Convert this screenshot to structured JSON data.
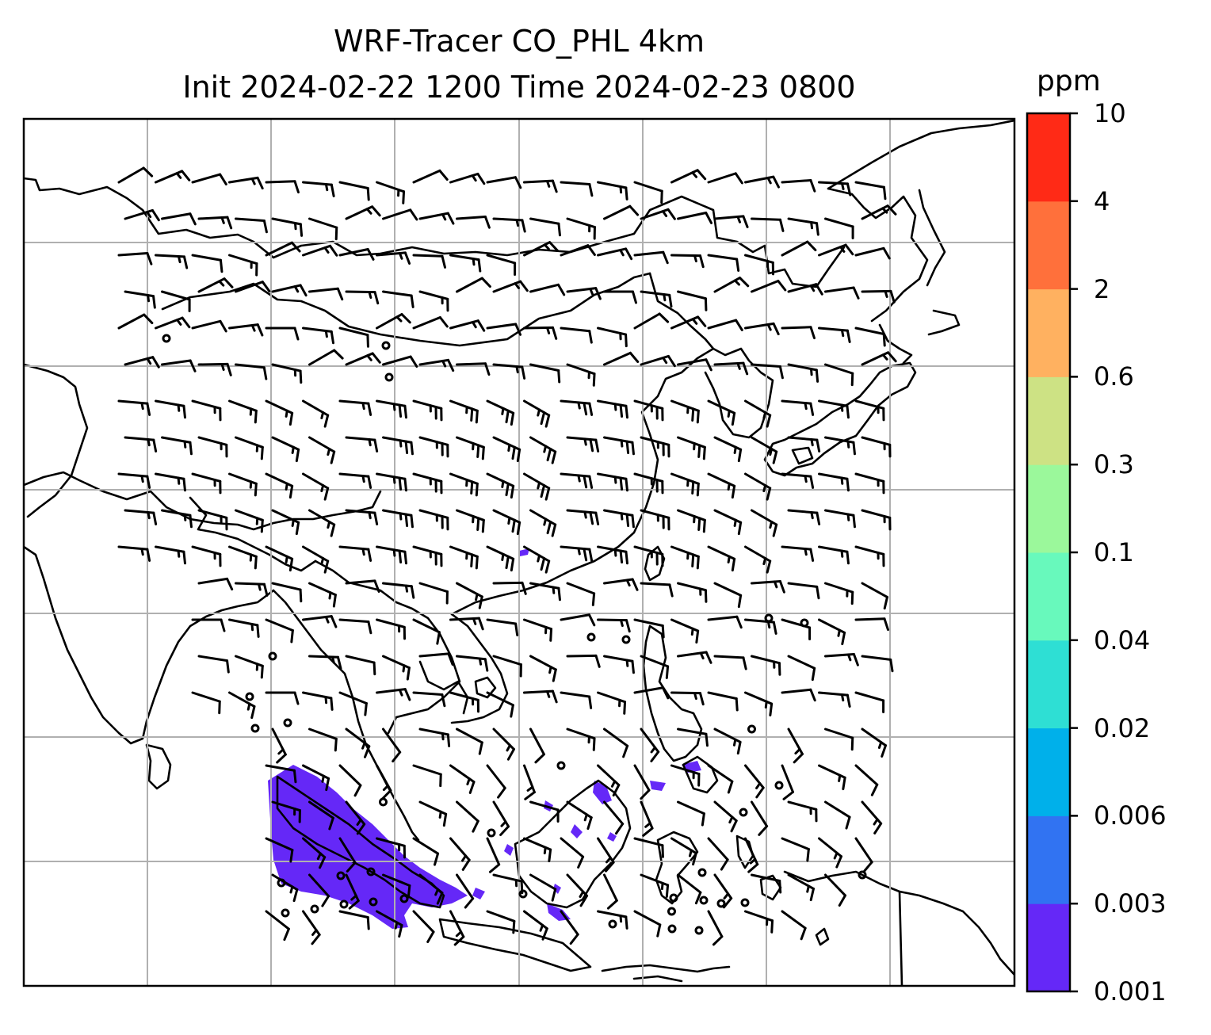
{
  "title": {
    "line1": "WRF-Tracer CO_PHL 4km",
    "line2": "Init 2024-02-22 1200 Time 2024-02-23 0800"
  },
  "colorbar": {
    "unit": "ppm",
    "levels": [
      "0.001",
      "0.003",
      "0.006",
      "0.02",
      "0.04",
      "0.1",
      "0.3",
      "0.6",
      "2",
      "4",
      "10"
    ],
    "colors": [
      "#6528f7",
      "#3173f2",
      "#00b0ea",
      "#2edfd4",
      "#68f9bc",
      "#9bf89b",
      "#cde284",
      "#ffb160",
      "#ff703b",
      "#ff2a16"
    ]
  },
  "map": {
    "frame_color": "#000000",
    "grid_color": "#b0b0b0",
    "coast_color": "#000000",
    "barb_color": "#000000",
    "tracer_color": "#6528f7"
  }
}
